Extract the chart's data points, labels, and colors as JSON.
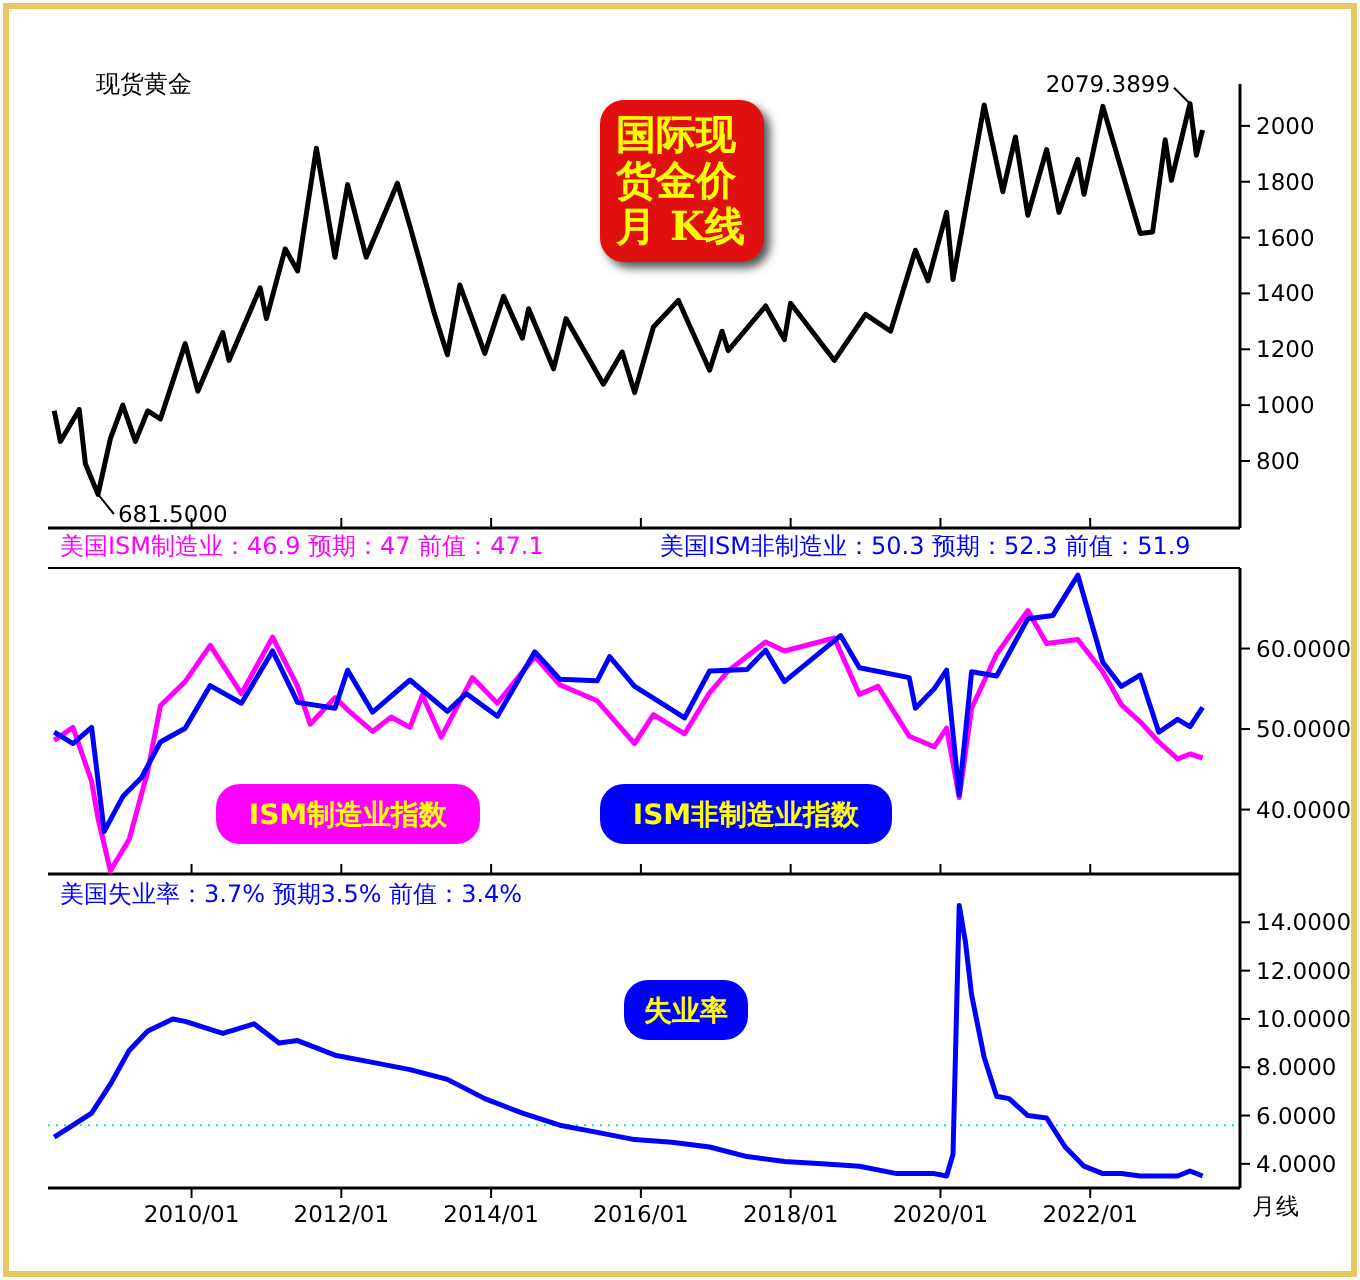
{
  "chart_data": [
    {
      "type": "line",
      "title": "国际现货金价月 K线",
      "xlim": [
        "2008-02",
        "2024-01"
      ],
      "ylim": [
        560,
        2150
      ],
      "yticks": [
        800,
        1000,
        1200,
        1400,
        1600,
        1800,
        2000
      ],
      "xticks": [
        {
          "value": "2010-01",
          "label": null
        },
        {
          "value": "2012-01",
          "label": null
        },
        {
          "value": "2014-01",
          "label": null
        },
        {
          "value": "2016-01",
          "label": null
        },
        {
          "value": "2018-01",
          "label": null
        },
        {
          "value": "2020-01",
          "label": null
        },
        {
          "value": "2022-01",
          "label": null
        }
      ],
      "tick_labels": "y",
      "series": [
        {
          "name": "现货黄金",
          "color": "#000000",
          "x": [
            "2008-03",
            "2008-04",
            "2008-07",
            "2008-08",
            "2008-10",
            "2008-12",
            "2009-02",
            "2009-04",
            "2009-06",
            "2009-08",
            "2009-12",
            "2010-02",
            "2010-06",
            "2010-07",
            "2010-12",
            "2011-01",
            "2011-04",
            "2011-06",
            "2011-09",
            "2011-12",
            "2012-02",
            "2012-05",
            "2012-10",
            "2012-12",
            "2013-04",
            "2013-06",
            "2013-08",
            "2013-12",
            "2014-03",
            "2014-06",
            "2014-07",
            "2014-11",
            "2015-01",
            "2015-07",
            "2015-10",
            "2015-12",
            "2016-03",
            "2016-07",
            "2016-12",
            "2017-02",
            "2017-03",
            "2017-09",
            "2017-12",
            "2018-01",
            "2018-08",
            "2019-01",
            "2019-05",
            "2019-09",
            "2019-11",
            "2020-02",
            "2020-03",
            "2020-08",
            "2020-11",
            "2021-01",
            "2021-03",
            "2021-06",
            "2021-08",
            "2021-11",
            "2021-12",
            "2022-03",
            "2022-09",
            "2022-11",
            "2023-01",
            "2023-02",
            "2023-05",
            "2023-06",
            "2023-07"
          ],
          "values": [
            980,
            870,
            985,
            790,
            680,
            880,
            1000,
            870,
            980,
            950,
            1220,
            1050,
            1260,
            1160,
            1420,
            1310,
            1560,
            1480,
            1920,
            1530,
            1790,
            1530,
            1795,
            1640,
            1320,
            1180,
            1430,
            1185,
            1390,
            1240,
            1345,
            1130,
            1310,
            1075,
            1190,
            1045,
            1280,
            1375,
            1125,
            1265,
            1195,
            1355,
            1235,
            1365,
            1160,
            1325,
            1265,
            1555,
            1445,
            1690,
            1450,
            2075,
            1765,
            1960,
            1680,
            1915,
            1690,
            1880,
            1755,
            2070,
            1615,
            1620,
            1950,
            1805,
            2080,
            1895,
            1985
          ]
        }
      ],
      "annotations": [
        {
          "text": "681.5000",
          "x": "2008-10",
          "y": 681.5
        },
        {
          "text": "2079.3899",
          "x": "2023-05",
          "y": 2079.3899
        }
      ]
    },
    {
      "type": "line",
      "xlim": [
        "2008-02",
        "2024-01"
      ],
      "ylim": [
        32,
        70
      ],
      "yticks": [
        {
          "value": 40,
          "label": "40.0000"
        },
        {
          "value": 50,
          "label": "50.0000"
        },
        {
          "value": 60,
          "label": "60.0000"
        }
      ],
      "xticks": [
        {
          "value": "2010-01",
          "label": null
        },
        {
          "value": "2012-01",
          "label": null
        },
        {
          "value": "2014-01",
          "label": null
        },
        {
          "value": "2016-01",
          "label": null
        },
        {
          "value": "2018-01",
          "label": null
        },
        {
          "value": "2020-01",
          "label": null
        },
        {
          "value": "2022-01",
          "label": null
        }
      ],
      "tick_labels": "y",
      "series": [
        {
          "name": "ISM制造业指数",
          "color": "#ff00ff",
          "x": [
            "2008-03",
            "2008-06",
            "2008-09",
            "2008-10",
            "2008-12",
            "2009-03",
            "2009-06",
            "2009-08",
            "2009-12",
            "2010-04",
            "2010-09",
            "2011-02",
            "2011-06",
            "2011-08",
            "2011-12",
            "2012-02",
            "2012-06",
            "2012-09",
            "2012-12",
            "2013-02",
            "2013-05",
            "2013-10",
            "2014-02",
            "2014-08",
            "2014-12",
            "2015-06",
            "2015-12",
            "2016-03",
            "2016-08",
            "2016-12",
            "2017-03",
            "2017-09",
            "2017-12",
            "2018-08",
            "2018-12",
            "2019-03",
            "2019-08",
            "2019-12",
            "2020-02",
            "2020-04",
            "2020-06",
            "2020-10",
            "2021-03",
            "2021-06",
            "2021-11",
            "2022-03",
            "2022-06",
            "2022-09",
            "2022-12",
            "2023-03",
            "2023-05",
            "2023-07"
          ],
          "values": [
            48.6,
            50.2,
            43.5,
            38.9,
            32.4,
            36.3,
            44.8,
            52.9,
            55.9,
            60.4,
            54.4,
            61.4,
            55.3,
            50.6,
            53.9,
            52.4,
            49.7,
            51.5,
            50.2,
            54.2,
            49.0,
            56.4,
            53.2,
            59.0,
            55.5,
            53.5,
            48.2,
            51.8,
            49.4,
            54.5,
            57.2,
            60.8,
            59.7,
            61.3,
            54.3,
            55.3,
            49.1,
            47.8,
            50.1,
            41.5,
            52.6,
            59.3,
            64.7,
            60.6,
            61.1,
            57.1,
            53.0,
            50.9,
            48.4,
            46.3,
            46.9,
            46.4
          ]
        },
        {
          "name": "ISM非制造业指数",
          "color": "#0000ff",
          "x": [
            "2008-03",
            "2008-06",
            "2008-09",
            "2008-11",
            "2009-02",
            "2009-05",
            "2009-08",
            "2009-12",
            "2010-04",
            "2010-09",
            "2011-02",
            "2011-06",
            "2011-12",
            "2012-02",
            "2012-06",
            "2012-12",
            "2013-06",
            "2013-09",
            "2014-02",
            "2014-08",
            "2014-12",
            "2015-06",
            "2015-08",
            "2015-12",
            "2016-05",
            "2016-08",
            "2016-12",
            "2017-06",
            "2017-09",
            "2017-12",
            "2018-09",
            "2018-12",
            "2019-08",
            "2019-09",
            "2019-12",
            "2020-02",
            "2020-04",
            "2020-06",
            "2020-10",
            "2021-03",
            "2021-07",
            "2021-11",
            "2022-03",
            "2022-06",
            "2022-09",
            "2022-12",
            "2023-03",
            "2023-05",
            "2023-07"
          ],
          "values": [
            49.6,
            48.2,
            50.2,
            37.3,
            41.6,
            44.0,
            48.4,
            50.1,
            55.4,
            53.2,
            59.7,
            53.3,
            52.6,
            57.3,
            52.1,
            56.1,
            52.2,
            54.4,
            51.6,
            59.6,
            56.2,
            56.0,
            59.0,
            55.3,
            52.9,
            51.4,
            57.2,
            57.4,
            59.8,
            55.9,
            61.6,
            57.6,
            56.4,
            52.6,
            55.0,
            57.3,
            41.8,
            57.1,
            56.6,
            63.7,
            64.1,
            69.1,
            58.3,
            55.3,
            56.7,
            49.6,
            51.2,
            50.3,
            52.7
          ]
        }
      ],
      "annotations": [
        "美国ISM制造业：46.9 预期：47 前值：47.1",
        "美国ISM非制造业：50.3 预期：52.3 前值：51.9"
      ]
    },
    {
      "type": "line",
      "xlim": [
        "2008-02",
        "2024-01"
      ],
      "ylim": [
        3,
        16
      ],
      "yticks": [
        {
          "value": 4,
          "label": "4.0000"
        },
        {
          "value": 6,
          "label": "6.0000"
        },
        {
          "value": 8,
          "label": "8.0000"
        },
        {
          "value": 10,
          "label": "10.0000"
        },
        {
          "value": 12,
          "label": "12.0000"
        },
        {
          "value": 14,
          "label": "14.0000"
        }
      ],
      "xticks": [
        {
          "value": "2010-01",
          "label": "2010/01"
        },
        {
          "value": "2012-01",
          "label": "2012/01"
        },
        {
          "value": "2014-01",
          "label": "2014/01"
        },
        {
          "value": "2016-01",
          "label": "2016/01"
        },
        {
          "value": "2018-01",
          "label": "2018/01"
        },
        {
          "value": "2020-01",
          "label": "2020/01"
        },
        {
          "value": "2022-01",
          "label": "2022/01"
        }
      ],
      "series": [
        {
          "name": "失业率",
          "color": "#0000ff",
          "x": [
            "2008-03",
            "2008-06",
            "2008-09",
            "2008-12",
            "2009-03",
            "2009-06",
            "2009-10",
            "2009-12",
            "2010-06",
            "2010-11",
            "2011-03",
            "2011-06",
            "2011-12",
            "2012-06",
            "2012-12",
            "2013-06",
            "2013-12",
            "2014-06",
            "2014-12",
            "2015-06",
            "2015-12",
            "2016-06",
            "2016-12",
            "2017-06",
            "2017-12",
            "2018-06",
            "2018-12",
            "2019-06",
            "2019-12",
            "2020-02",
            "2020-03",
            "2020-04",
            "2020-05",
            "2020-06",
            "2020-08",
            "2020-10",
            "2020-12",
            "2021-03",
            "2021-06",
            "2021-09",
            "2021-12",
            "2022-03",
            "2022-06",
            "2022-09",
            "2022-12",
            "2023-03",
            "2023-05",
            "2023-07"
          ],
          "values": [
            5.1,
            5.6,
            6.1,
            7.3,
            8.7,
            9.5,
            10.0,
            9.9,
            9.4,
            9.8,
            9.0,
            9.1,
            8.5,
            8.2,
            7.9,
            7.5,
            6.7,
            6.1,
            5.6,
            5.3,
            5.0,
            4.9,
            4.7,
            4.3,
            4.1,
            4.0,
            3.9,
            3.6,
            3.6,
            3.5,
            4.4,
            14.7,
            13.2,
            11.0,
            8.4,
            6.8,
            6.7,
            6.0,
            5.9,
            4.7,
            3.9,
            3.6,
            3.6,
            3.5,
            3.5,
            3.5,
            3.7,
            3.5
          ]
        }
      ],
      "ref_lines": [
        {
          "axis": "y",
          "value": 5.6,
          "color": "#00e5e5",
          "line_style": "dotted"
        }
      ],
      "annotations": [
        "美国失业率：3.7% 预期3.5% 前值：3.4%",
        "月线"
      ]
    }
  ]
}
